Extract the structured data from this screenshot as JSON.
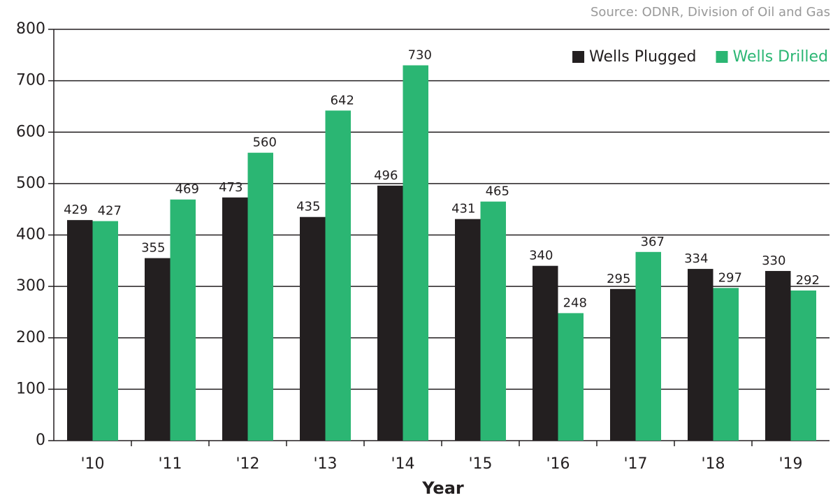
{
  "chart_data": {
    "type": "bar",
    "source": "Source: ODNR, Division of Oil and Gas",
    "x_label": "Year",
    "categories": [
      "'10",
      "'11",
      "'12",
      "'13",
      "'14",
      "'15",
      "'16",
      "'17",
      "'18",
      "'19"
    ],
    "series": [
      {
        "name": "Wells Plugged",
        "color": "#231f20",
        "values": [
          429,
          355,
          473,
          435,
          496,
          431,
          340,
          295,
          334,
          330
        ]
      },
      {
        "name": "Wells Drilled",
        "color": "#2bb673",
        "values": [
          427,
          469,
          560,
          642,
          730,
          465,
          248,
          367,
          297,
          292
        ]
      }
    ],
    "ylim": [
      0,
      800
    ],
    "yticks": [
      0,
      100,
      200,
      300,
      400,
      500,
      600,
      700,
      800
    ],
    "grid": true,
    "legend": "top-right"
  }
}
